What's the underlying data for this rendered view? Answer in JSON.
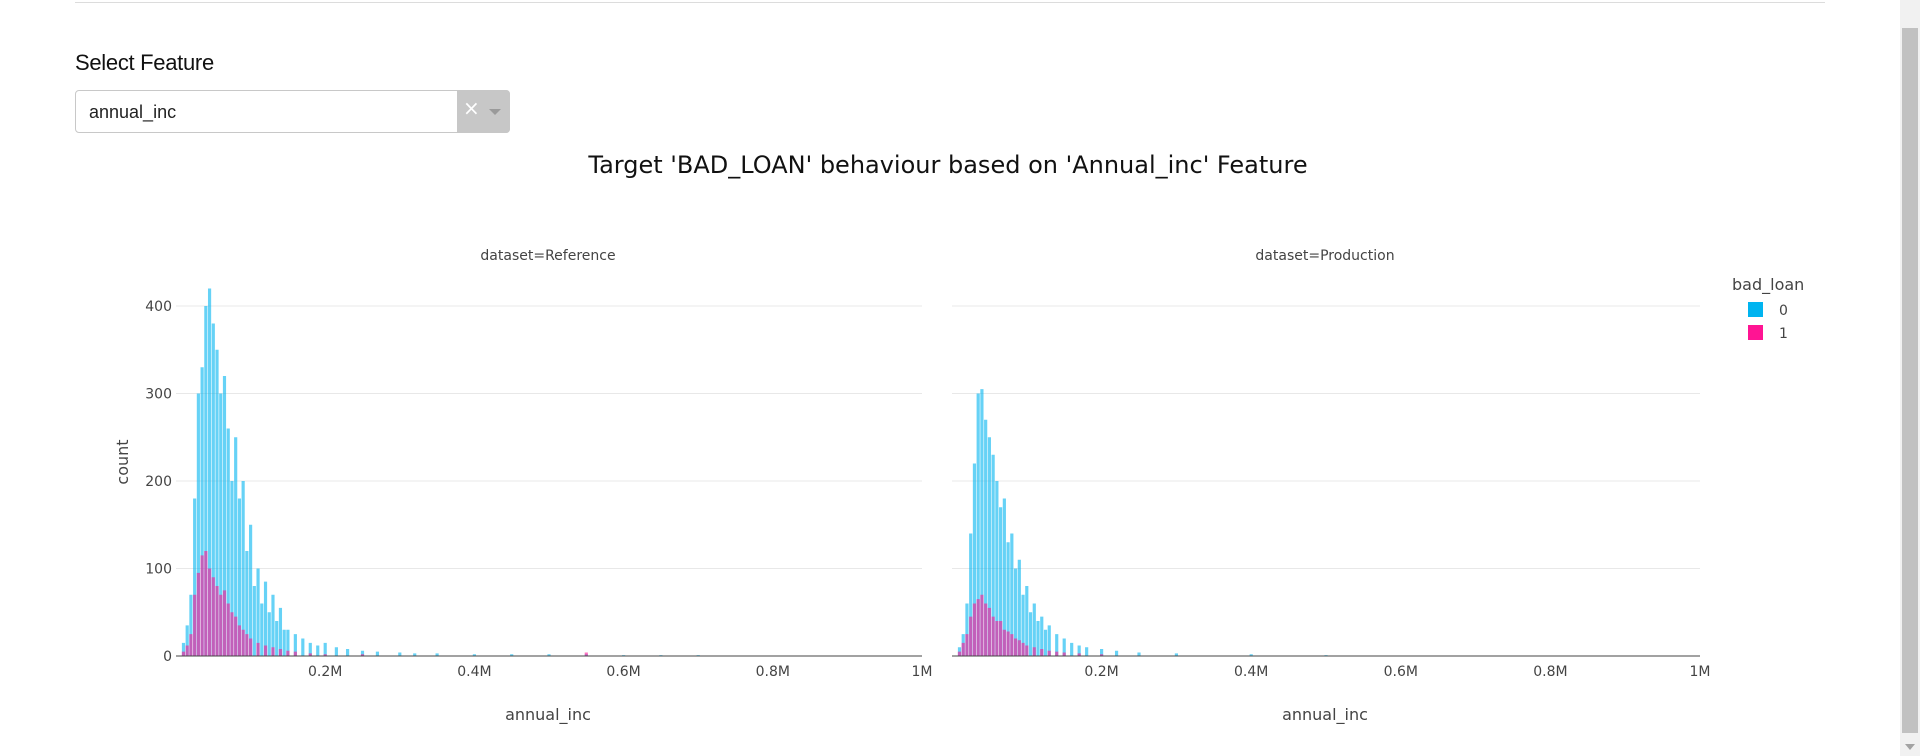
{
  "page": {
    "feature_label": "Select Feature"
  },
  "dropdown": {
    "value": "annual_inc",
    "clear_symbol": "×"
  },
  "chart_data": {
    "type": "bar",
    "title": "Target 'BAD_LOAN' behaviour based on 'Annual_inc' Feature",
    "ylabel": "count",
    "xlabel": "annual_inc",
    "legend": {
      "title": "bad_loan",
      "placement": "top-right"
    },
    "ylim": [
      0,
      420
    ],
    "xlim": [
      0,
      1000000
    ],
    "yticks": [
      0,
      100,
      200,
      300,
      400
    ],
    "xticks": [
      {
        "value": 200000,
        "label": "0.2M"
      },
      {
        "value": 400000,
        "label": "0.4M"
      },
      {
        "value": 600000,
        "label": "0.6M"
      },
      {
        "value": 800000,
        "label": "0.8M"
      },
      {
        "value": 1000000,
        "label": "1M"
      }
    ],
    "colors": {
      "0": "#00b4f0",
      "1": "#ff1493"
    },
    "bin_width": 5000,
    "panels": [
      {
        "title": "dataset=Reference",
        "series": [
          {
            "name": "0",
            "x": [
              10000,
              15000,
              20000,
              25000,
              30000,
              35000,
              40000,
              45000,
              50000,
              55000,
              60000,
              65000,
              70000,
              75000,
              80000,
              85000,
              90000,
              95000,
              100000,
              105000,
              110000,
              115000,
              120000,
              125000,
              130000,
              135000,
              140000,
              145000,
              150000,
              160000,
              170000,
              180000,
              190000,
              200000,
              215000,
              230000,
              250000,
              270000,
              300000,
              320000,
              350000,
              400000,
              450000,
              500000,
              550000,
              600000,
              650000,
              700000
            ],
            "y": [
              15,
              35,
              70,
              180,
              300,
              330,
              400,
              420,
              380,
              350,
              300,
              320,
              260,
              200,
              250,
              180,
              200,
              120,
              150,
              80,
              100,
              60,
              85,
              50,
              70,
              40,
              55,
              30,
              30,
              25,
              20,
              15,
              12,
              15,
              10,
              8,
              6,
              5,
              4,
              3,
              3,
              2,
              2,
              2,
              2,
              1,
              1,
              1
            ]
          },
          {
            "name": "1",
            "x": [
              10000,
              15000,
              20000,
              25000,
              30000,
              35000,
              40000,
              45000,
              50000,
              55000,
              60000,
              65000,
              70000,
              75000,
              80000,
              85000,
              90000,
              95000,
              100000,
              110000,
              120000,
              130000,
              140000,
              150000,
              160000,
              180000,
              200000,
              250000,
              550000
            ],
            "y": [
              5,
              12,
              25,
              70,
              95,
              115,
              120,
              100,
              90,
              80,
              70,
              75,
              60,
              50,
              45,
              35,
              30,
              25,
              20,
              15,
              12,
              10,
              8,
              6,
              5,
              3,
              2,
              2,
              4
            ]
          }
        ]
      },
      {
        "title": "dataset=Production",
        "series": [
          {
            "name": "0",
            "x": [
              10000,
              15000,
              20000,
              25000,
              30000,
              35000,
              40000,
              45000,
              50000,
              55000,
              60000,
              65000,
              70000,
              75000,
              80000,
              85000,
              90000,
              95000,
              100000,
              105000,
              110000,
              115000,
              120000,
              125000,
              130000,
              140000,
              150000,
              160000,
              170000,
              180000,
              200000,
              220000,
              250000,
              300000,
              400000,
              500000
            ],
            "y": [
              10,
              25,
              60,
              140,
              220,
              300,
              305,
              270,
              250,
              230,
              200,
              170,
              180,
              130,
              140,
              100,
              110,
              70,
              80,
              50,
              60,
              40,
              45,
              30,
              35,
              25,
              20,
              15,
              12,
              10,
              8,
              6,
              4,
              3,
              2,
              1
            ]
          },
          {
            "name": "1",
            "x": [
              10000,
              15000,
              20000,
              25000,
              30000,
              35000,
              40000,
              45000,
              50000,
              55000,
              60000,
              65000,
              70000,
              75000,
              80000,
              85000,
              90000,
              95000,
              100000,
              110000,
              120000,
              130000,
              140000,
              150000,
              170000,
              200000
            ],
            "y": [
              5,
              15,
              25,
              45,
              60,
              65,
              70,
              60,
              55,
              45,
              40,
              40,
              30,
              28,
              25,
              20,
              18,
              15,
              12,
              10,
              8,
              6,
              5,
              4,
              3,
              2
            ]
          }
        ]
      }
    ]
  }
}
